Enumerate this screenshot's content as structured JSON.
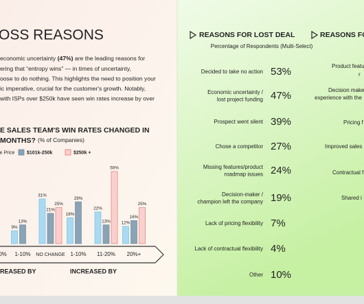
{
  "left": {
    "title": "OSS REASONS",
    "paragraph_first": [
      "economic uncertainty ",
      "(47%)",
      " are the leading reasons for"
    ],
    "paragraph": [
      "ering that “entropy wins” — in times of uncertainty,",
      "oose to do nothing. This highlights the need to position your",
      "ic imperative, crucial for the customer's growth. Notably,",
      "with ISPs over $250k have seen win rates increase by over"
    ]
  },
  "chart_data": {
    "type": "bar",
    "title": "E SALES TEAM'S WIN RATES CHANGED IN",
    "title2": "MONTHS?",
    "title_note": "(% of Companies)",
    "categories": [
      "0%",
      "1-10%",
      "NO CHANGE",
      "1-10%",
      "11-20%",
      "20%+"
    ],
    "series": [
      {
        "name": "le Price",
        "color": "#a9daf2",
        "edge": "#78bfe4",
        "values": [
          null,
          9,
          31,
          18,
          22,
          12
        ],
        "value_labels": [
          null,
          "9%",
          "31%",
          "18%",
          "22%",
          "12%"
        ]
      },
      {
        "name": "$101k-250k",
        "color": "#8aa3b6",
        "edge": "#6f8aa0",
        "values": [
          null,
          13,
          21,
          29,
          13,
          16
        ],
        "value_labels": [
          null,
          "13%",
          "21%",
          "29%",
          "13%",
          "16%"
        ]
      },
      {
        "name": "$250k +",
        "color": "#fad0ce",
        "edge": "#e07a74",
        "values": [
          null,
          null,
          25,
          null,
          50,
          25
        ],
        "value_labels": [
          null,
          null,
          "25%",
          null,
          "50%",
          "25%"
        ]
      }
    ],
    "group_labels": [
      "REASED BY",
      "INCREASED BY"
    ]
  },
  "right": {
    "header": "REASONS FOR LOST DEAL",
    "subtitle": "Percentage of Respondents (Multi-Select)",
    "rows": [
      {
        "label": [
          "Decided to take no action"
        ],
        "value": "53%"
      },
      {
        "label": [
          "Economic uncertainty /",
          "lost project funding"
        ],
        "value": "47%"
      },
      {
        "label": [
          "Prospect went silent"
        ],
        "value": "39%"
      },
      {
        "label": [
          "Chose a competitor"
        ],
        "value": "27%"
      },
      {
        "label": [
          "Missing features/product",
          "roadmap issues"
        ],
        "value": "24%"
      },
      {
        "label": [
          "Decision-maker /",
          "champion left the company"
        ],
        "value": "19%"
      },
      {
        "label": [
          "Lack of pricing flexibility"
        ],
        "value": "7%"
      },
      {
        "label": [
          "Lack of contractual flexibility"
        ],
        "value": "4%"
      },
      {
        "label": [
          "Other"
        ],
        "value": "10%"
      }
    ]
  },
  "right2": {
    "header": "REASONS FOR",
    "fragments": [
      "Product featu",
      "r",
      "Decision make",
      "experience with the",
      "Pricing f",
      "Improved sales",
      "Contractual f",
      "Shared i"
    ]
  }
}
